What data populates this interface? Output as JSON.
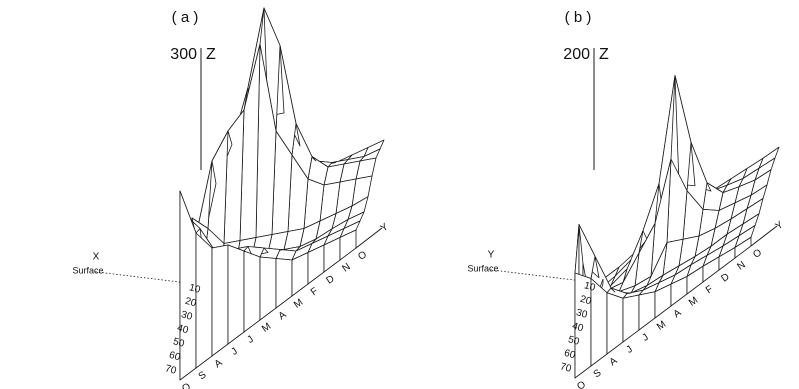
{
  "chart_data": [
    {
      "type": "surface3d",
      "panel_label": "( a )",
      "z_axis_label": "Z",
      "z_max_label": "300",
      "zlim": [
        0,
        300
      ],
      "x_axis_label": "X",
      "x_origin_label": "Surface",
      "x_ticks": [
        "10",
        "20",
        "30",
        "40",
        "50",
        "60",
        "70"
      ],
      "y_axis_label": "Y",
      "y_ticks": [
        "O",
        "S",
        "A",
        "J",
        "J",
        "M",
        "A",
        "M",
        "F",
        "D",
        "N",
        "O"
      ],
      "z_values": [
        [
          210,
          150,
          120,
          110,
          90,
          70,
          55,
          40,
          35,
          30,
          25,
          20
        ],
        [
          170,
          140,
          100,
          90,
          80,
          65,
          50,
          35,
          30,
          25,
          20,
          15
        ],
        [
          110,
          90,
          70,
          60,
          55,
          45,
          35,
          25,
          20,
          18,
          15,
          10
        ],
        [
          135,
          110,
          80,
          70,
          60,
          50,
          40,
          30,
          25,
          20,
          15,
          12
        ],
        [
          100,
          170,
          190,
          200,
          260,
          150,
          110,
          70,
          50,
          40,
          30,
          20
        ],
        [
          60,
          130,
          160,
          210,
          285,
          230,
          130,
          80,
          55,
          45,
          35,
          25
        ],
        [
          40,
          70,
          90,
          120,
          150,
          140,
          90,
          60,
          45,
          35,
          25,
          20
        ],
        [
          20,
          40,
          50,
          60,
          70,
          60,
          50,
          40,
          30,
          25,
          20,
          15
        ]
      ]
    },
    {
      "type": "surface3d",
      "panel_label": "( b )",
      "z_axis_label": "Z",
      "z_max_label": "200",
      "zlim": [
        0,
        200
      ],
      "x_axis_label": "Y",
      "x_origin_label": "Surface",
      "x_ticks": [
        "10",
        "20",
        "30",
        "40",
        "50",
        "60",
        "70"
      ],
      "y_axis_label": "Y",
      "y_ticks": [
        "O",
        "S",
        "A",
        "J",
        "J",
        "M",
        "A",
        "M",
        "F",
        "D",
        "N",
        "O"
      ],
      "z_values": [
        [
          120,
          100,
          70,
          50,
          40,
          30,
          25,
          20,
          18,
          15,
          12,
          10
        ],
        [
          160,
          110,
          60,
          40,
          30,
          25,
          20,
          18,
          15,
          12,
          10,
          8
        ],
        [
          100,
          70,
          40,
          25,
          20,
          18,
          15,
          12,
          10,
          10,
          8,
          6
        ],
        [
          60,
          40,
          25,
          18,
          15,
          40,
          30,
          20,
          15,
          12,
          10,
          8
        ],
        [
          30,
          25,
          20,
          40,
          60,
          120,
          70,
          35,
          20,
          15,
          10,
          8
        ],
        [
          15,
          15,
          20,
          50,
          90,
          200,
          110,
          50,
          25,
          18,
          12,
          10
        ],
        [
          8,
          10,
          15,
          25,
          40,
          60,
          45,
          25,
          18,
          12,
          10,
          8
        ],
        [
          5,
          5,
          8,
          10,
          15,
          20,
          18,
          12,
          10,
          8,
          6,
          5
        ]
      ]
    }
  ]
}
